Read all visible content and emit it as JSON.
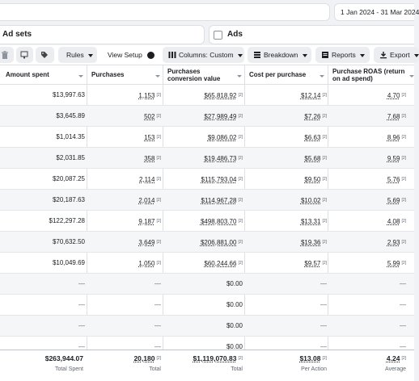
{
  "date_range": "1 Jan 2024 - 31 Mar 2024",
  "tabs": {
    "adsets": "Ad sets",
    "ads": "Ads"
  },
  "toolbar": {
    "rules": "Rules",
    "view_setup": "View Setup",
    "columns": "Columns: Custom",
    "breakdown": "Breakdown",
    "reports": "Reports",
    "export": "Export"
  },
  "columns": [
    "Amount spent",
    "Purchases",
    "Purchases conversion value",
    "Cost per purchase",
    "Purchase ROAS (return on ad spend)"
  ],
  "footnote_marker": "[2]",
  "rows": [
    {
      "spent": "$13,997.63",
      "purchases": "1,153",
      "conv_value": "$65,818.92",
      "cpp": "$12.14",
      "roas": "4.70"
    },
    {
      "spent": "$3,645.89",
      "purchases": "502",
      "conv_value": "$27,989.49",
      "cpp": "$7.26",
      "roas": "7.68"
    },
    {
      "spent": "$1,014.35",
      "purchases": "153",
      "conv_value": "$9,086.02",
      "cpp": "$6.63",
      "roas": "8.96"
    },
    {
      "spent": "$2,031.85",
      "purchases": "358",
      "conv_value": "$19,486.73",
      "cpp": "$5.68",
      "roas": "9.59"
    },
    {
      "spent": "$20,087.25",
      "purchases": "2,114",
      "conv_value": "$115,793.04",
      "cpp": "$9.50",
      "roas": "5.76"
    },
    {
      "spent": "$20,187.63",
      "purchases": "2,014",
      "conv_value": "$114,967.28",
      "cpp": "$10.02",
      "roas": "5.69"
    },
    {
      "spent": "$122,297.28",
      "purchases": "9,187",
      "conv_value": "$498,803.70",
      "cpp": "$13.31",
      "roas": "4.08"
    },
    {
      "spent": "$70,632.50",
      "purchases": "3,649",
      "conv_value": "$206,881.00",
      "cpp": "$19.36",
      "roas": "2.93"
    },
    {
      "spent": "$10,049.69",
      "purchases": "1,050",
      "conv_value": "$60,244.66",
      "cpp": "$9.57",
      "roas": "5.99"
    },
    {
      "spent": "—",
      "purchases": "—",
      "conv_value": "$0.00",
      "cpp": "—",
      "roas": "—"
    },
    {
      "spent": "—",
      "purchases": "—",
      "conv_value": "$0.00",
      "cpp": "—",
      "roas": "—"
    },
    {
      "spent": "—",
      "purchases": "—",
      "conv_value": "$0.00",
      "cpp": "—",
      "roas": "—"
    },
    {
      "spent": "—",
      "purchases": "—",
      "conv_value": "$0.00",
      "cpp": "—",
      "roas": "—"
    }
  ],
  "totals": {
    "spent": "$263,944.07",
    "spent_label": "Total Spent",
    "purchases": "20,180",
    "purchases_label": "Total",
    "conv_value": "$1,119,070.83",
    "conv_value_label": "Total",
    "cpp": "$13.08",
    "cpp_label": "Per Action",
    "roas": "4.24",
    "roas_label": "Average"
  },
  "icons": [
    "trash-icon",
    "copy-icon",
    "tag-icon",
    "columns-icon",
    "breakdown-icon",
    "reports-icon",
    "export-icon",
    "sort-icon"
  ]
}
